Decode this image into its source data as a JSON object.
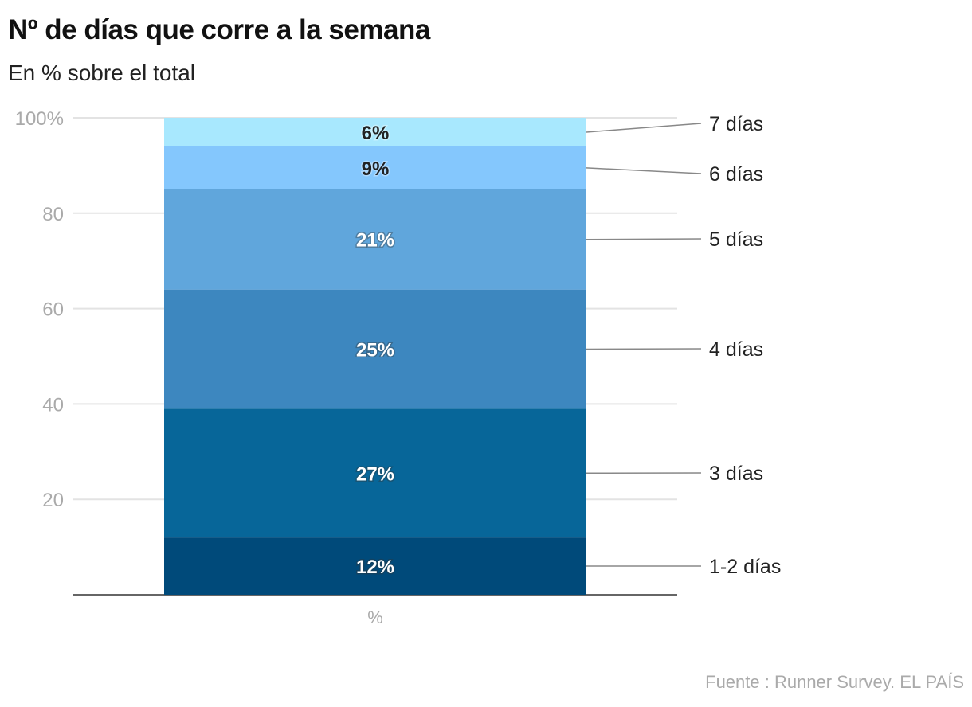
{
  "chart_data": {
    "type": "bar",
    "stacked": true,
    "title": "Nº de días que corre a la semana",
    "subtitle": "En % sobre el total",
    "categories": [
      "%"
    ],
    "ylim": [
      0,
      100
    ],
    "yticks": [
      "20",
      "40",
      "60",
      "80",
      "100%"
    ],
    "ytick_values": [
      20,
      40,
      60,
      80,
      100
    ],
    "grid": true,
    "legend": "right, direct labels",
    "series": [
      {
        "name": "1-2 días",
        "values": [
          12
        ],
        "label": "12%",
        "color": "#004a7a",
        "label_color": "#ffffff"
      },
      {
        "name": "3 días",
        "values": [
          27
        ],
        "label": "27%",
        "color": "#076699",
        "label_color": "#ffffff"
      },
      {
        "name": "4 días",
        "values": [
          25
        ],
        "label": "25%",
        "color": "#3d87bf",
        "label_color": "#ffffff"
      },
      {
        "name": "5 días",
        "values": [
          21
        ],
        "label": "21%",
        "color": "#60a6dc",
        "label_color": "#ffffff"
      },
      {
        "name": "6 días",
        "values": [
          9
        ],
        "label": "9%",
        "color": "#84c7fd",
        "label_color": "#222222"
      },
      {
        "name": "7 días",
        "values": [
          6
        ],
        "label": "6%",
        "color": "#a8e8fe",
        "label_color": "#222222"
      }
    ],
    "source": "Fuente : Runner Survey. EL PAÍS"
  }
}
